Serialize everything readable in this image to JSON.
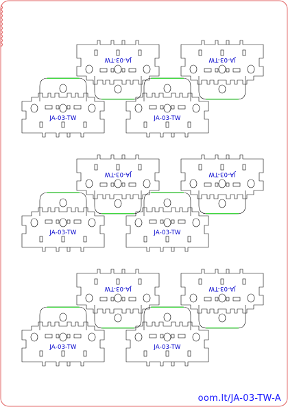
{
  "part_label": "JA-03-TW",
  "footer_text": "oom.lt/JA-03-TW-A",
  "colors": {
    "border": "#e06060",
    "cut_line": "#000000",
    "score_line": "#00cc00",
    "label_text": "#0000cc",
    "footer_text": "#1a1aff"
  }
}
